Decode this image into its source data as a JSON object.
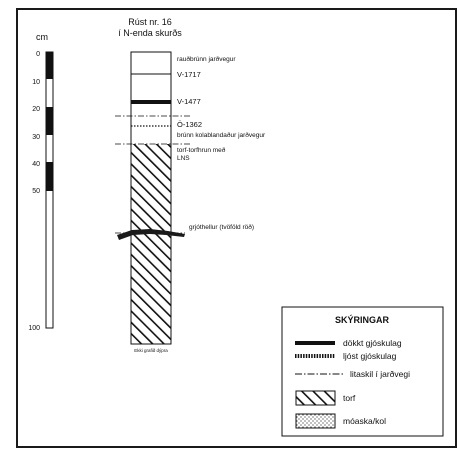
{
  "title": {
    "line1": "Rúst nr. 16",
    "line2": "í N-enda skurðs"
  },
  "scale": {
    "unit": "cm",
    "ticks": [
      "0",
      "10",
      "20",
      "30",
      "40",
      "50",
      "100"
    ]
  },
  "layers": [
    {
      "label": "rauðbrúnn jarðvegur"
    },
    {
      "label": "V-1717"
    },
    {
      "label": "V-1477"
    },
    {
      "label": "Ö-1362"
    },
    {
      "label": "brúnn kolablandaður jarðvegur"
    },
    {
      "label": "torf-torfhrun með"
    },
    {
      "label": "LNS"
    },
    {
      "label": "grjóthellur (tvöföld röð)"
    }
  ],
  "bottom_note": "Ekki grafið dýpra",
  "legend": {
    "title": "SKÝRINGAR",
    "items": [
      {
        "label": "dökkt gjóskulag"
      },
      {
        "label": "ljóst gjóskulag"
      },
      {
        "label": "litaskil í jarðvegi"
      },
      {
        "label": "torf"
      },
      {
        "label": "móaska/kol"
      }
    ]
  }
}
